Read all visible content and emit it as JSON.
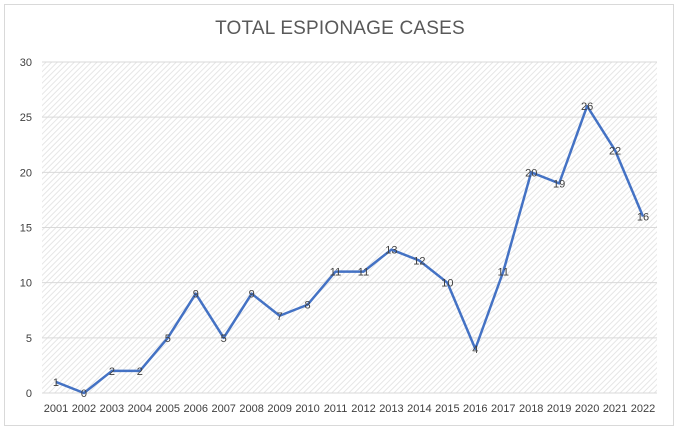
{
  "chart_data": {
    "type": "line",
    "title": "TOTAL ESPIONAGE CASES",
    "xlabel": "",
    "ylabel": "",
    "categories": [
      "2001",
      "2002",
      "2003",
      "2004",
      "2005",
      "2006",
      "2007",
      "2008",
      "2009",
      "2010",
      "2011",
      "2012",
      "2013",
      "2014",
      "2015",
      "2016",
      "2017",
      "2018",
      "2019",
      "2020",
      "2021",
      "2022"
    ],
    "series": [
      {
        "values": [
          1,
          0,
          2,
          2,
          5,
          9,
          5,
          9,
          7,
          8,
          11,
          11,
          13,
          12,
          10,
          4,
          11,
          20,
          19,
          26,
          22,
          16
        ]
      }
    ],
    "ylim": [
      0,
      30
    ],
    "yticks": [
      0,
      5,
      10,
      15,
      20,
      25,
      30
    ],
    "grid": true,
    "data_labels": true,
    "legend": "none",
    "colors": {
      "line": "#4472c4",
      "grid": "#d9d9d9",
      "plot_hatch": "#e8e8e8"
    }
  }
}
